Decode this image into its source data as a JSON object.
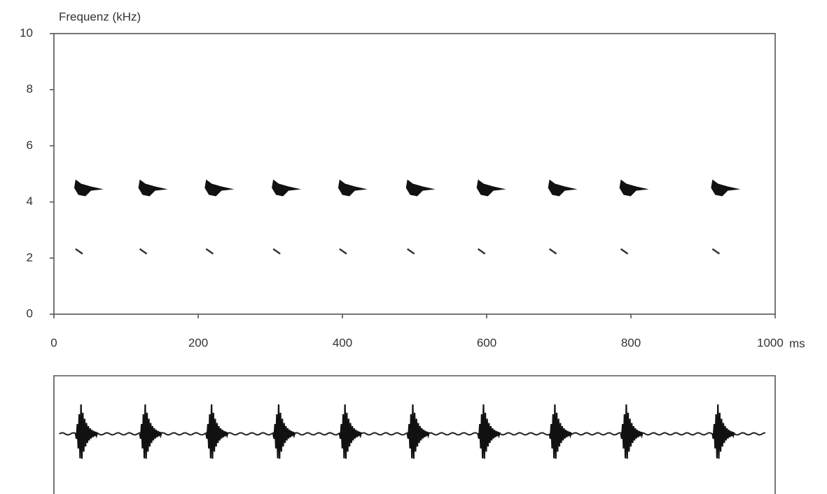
{
  "chart_data": {
    "type": "spectrogram",
    "title": "Frequenz (kHz)",
    "x_unit": "ms",
    "x": [
      30,
      119,
      211,
      304,
      396,
      490,
      588,
      687,
      786,
      913
    ],
    "series": [
      {
        "color": "#111111",
        "values": [
          4.5,
          4.5,
          4.5,
          4.5,
          4.5,
          4.5,
          4.5,
          4.5,
          4.5,
          4.5
        ]
      },
      {
        "color": "#333333",
        "values": [
          2.2,
          2.2,
          2.2,
          2.2,
          2.2,
          2.2,
          2.2,
          2.2,
          2.2,
          2.2
        ]
      }
    ],
    "xlim": [
      0,
      1000
    ],
    "xticks": [
      0,
      200,
      400,
      600,
      800,
      1000
    ],
    "ylim": [
      0,
      10
    ],
    "yticks": [
      0,
      2,
      4,
      6,
      8,
      10
    ]
  }
}
